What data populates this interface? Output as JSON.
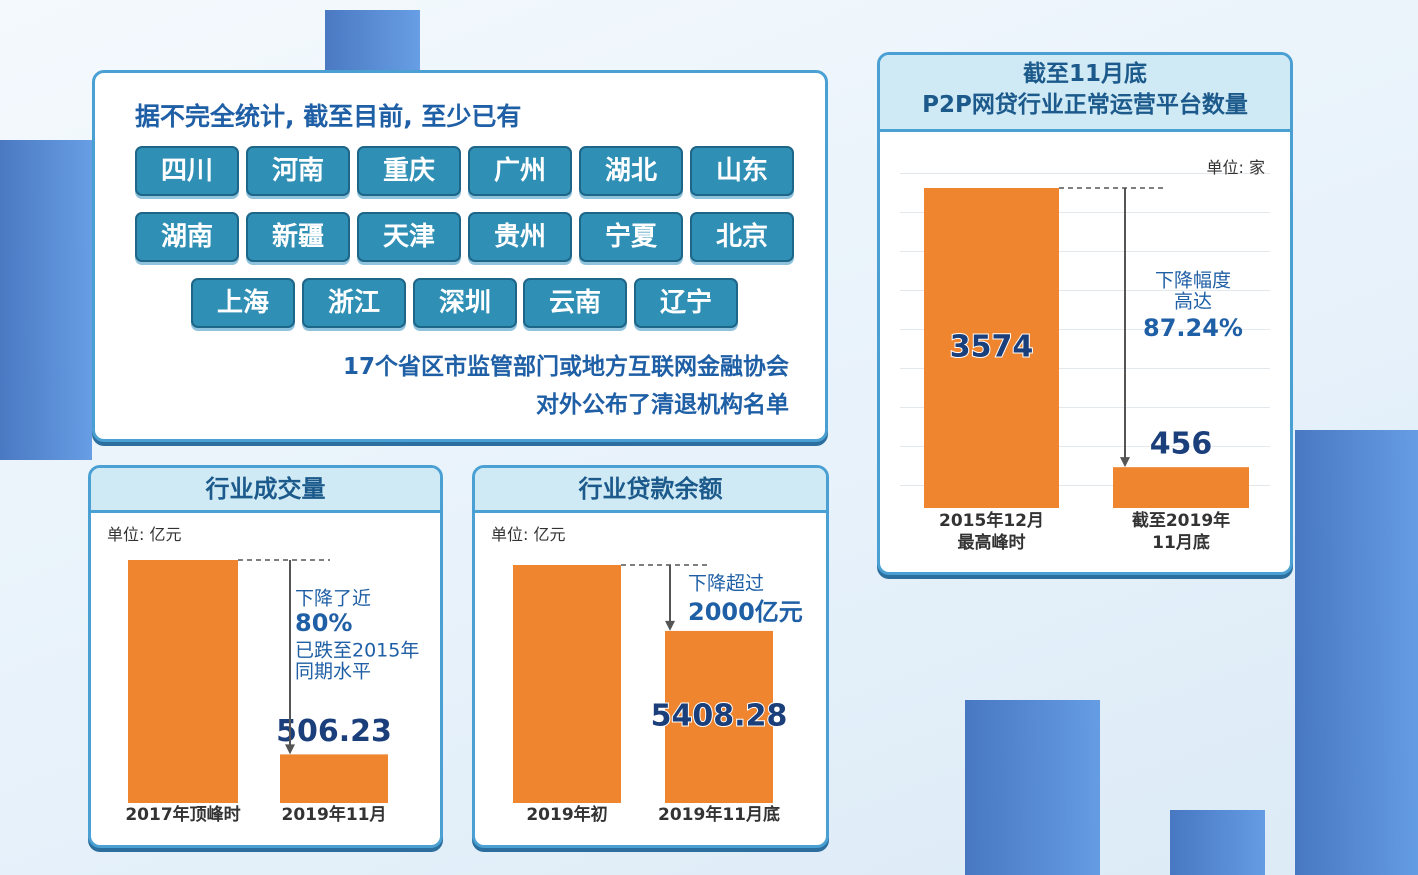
{
  "header": {
    "title": "据不完全统计, 截至目前, 至少已有"
  },
  "provinces": [
    "四川",
    "河南",
    "重庆",
    "广州",
    "湖北",
    "山东",
    "湖南",
    "新疆",
    "天津",
    "贵州",
    "宁夏",
    "北京",
    "上海",
    "浙江",
    "深圳",
    "云南",
    "辽宁"
  ],
  "footnote": [
    "17个省区市监管部门或地方互联网金融协会",
    "对外公布了清退机构名单"
  ],
  "chart_data": [
    {
      "type": "bar",
      "title": "行业成交量",
      "unit": "单位: 亿元",
      "categories": [
        "2017年顶峰时",
        "2019年11月"
      ],
      "values": [
        2530,
        506.23
      ],
      "value_labels": [
        null,
        "506.23"
      ],
      "color": "#f0852f",
      "annotation": [
        "下降了近",
        "80%",
        "已跌至2015年",
        "同期水平"
      ]
    },
    {
      "type": "bar",
      "title": "行业贷款余额",
      "unit": "单位: 亿元",
      "categories": [
        "2019年初",
        "2019年11月底"
      ],
      "values": [
        7480,
        5408.28
      ],
      "value_labels": [
        null,
        "5408.28"
      ],
      "color": "#f0852f",
      "annotation": [
        "下降超过",
        "2000亿元"
      ]
    },
    {
      "type": "bar",
      "title": [
        "截至11月底",
        "P2P网贷行业正常运营平台数量"
      ],
      "unit": "单位: 家",
      "categories": [
        "2015年12月\n最高峰时",
        "截至2019年\n11月底"
      ],
      "values": [
        3574,
        456
      ],
      "value_labels": [
        "3574",
        "456"
      ],
      "color": "#f0852f",
      "annotation": [
        "下降幅度",
        "高达",
        "87.24%"
      ]
    }
  ]
}
